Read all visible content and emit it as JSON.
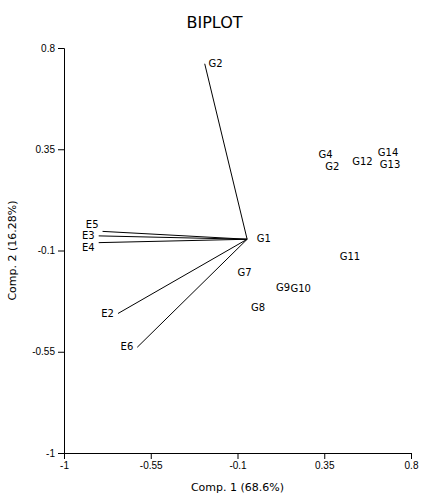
{
  "chart_data": {
    "type": "biplot",
    "title": "BIPLOT",
    "x_label": "Comp. 1 (68.6%)",
    "y_label": "Comp. 2 (16.28%)",
    "xlim": [
      -1,
      0.8
    ],
    "ylim": [
      -1,
      0.8
    ],
    "xticks": [
      -1,
      -0.55,
      -0.1,
      0.35,
      0.8
    ],
    "yticks": [
      -1,
      -0.55,
      -0.1,
      0.35,
      0.8
    ],
    "origin": {
      "x": -0.05,
      "y": -0.05
    },
    "vectors": [
      {
        "x": -0.27,
        "y": 0.73
      },
      {
        "label": "E2",
        "x": -0.72,
        "y": -0.38
      },
      {
        "label": "E3",
        "x": -0.82,
        "y": -0.035
      },
      {
        "label": "E4",
        "x": -0.82,
        "y": -0.065
      },
      {
        "label": "E5",
        "x": -0.8,
        "y": -0.015
      },
      {
        "label": "E6",
        "x": -0.62,
        "y": -0.53
      }
    ],
    "points": [
      {
        "label": "G1",
        "x": 0.0,
        "y": -0.05
      },
      {
        "label": "G2",
        "x": -0.25,
        "y": 0.73
      },
      {
        "label": "G4",
        "x": 0.32,
        "y": 0.315
      },
      {
        "label": "G2",
        "x": 0.355,
        "y": 0.28
      },
      {
        "label": "G7",
        "x": -0.1,
        "y": -0.2
      },
      {
        "label": "G8",
        "x": -0.03,
        "y": -0.355
      },
      {
        "label": "G9",
        "x": 0.1,
        "y": -0.265
      },
      {
        "label": "G10",
        "x": 0.175,
        "y": -0.27
      },
      {
        "label": "G11",
        "x": 0.43,
        "y": -0.13
      },
      {
        "label": "G12",
        "x": 0.495,
        "y": 0.295
      },
      {
        "label": "G13",
        "x": 0.638,
        "y": 0.282
      },
      {
        "label": "G14",
        "x": 0.628,
        "y": 0.33
      }
    ]
  }
}
